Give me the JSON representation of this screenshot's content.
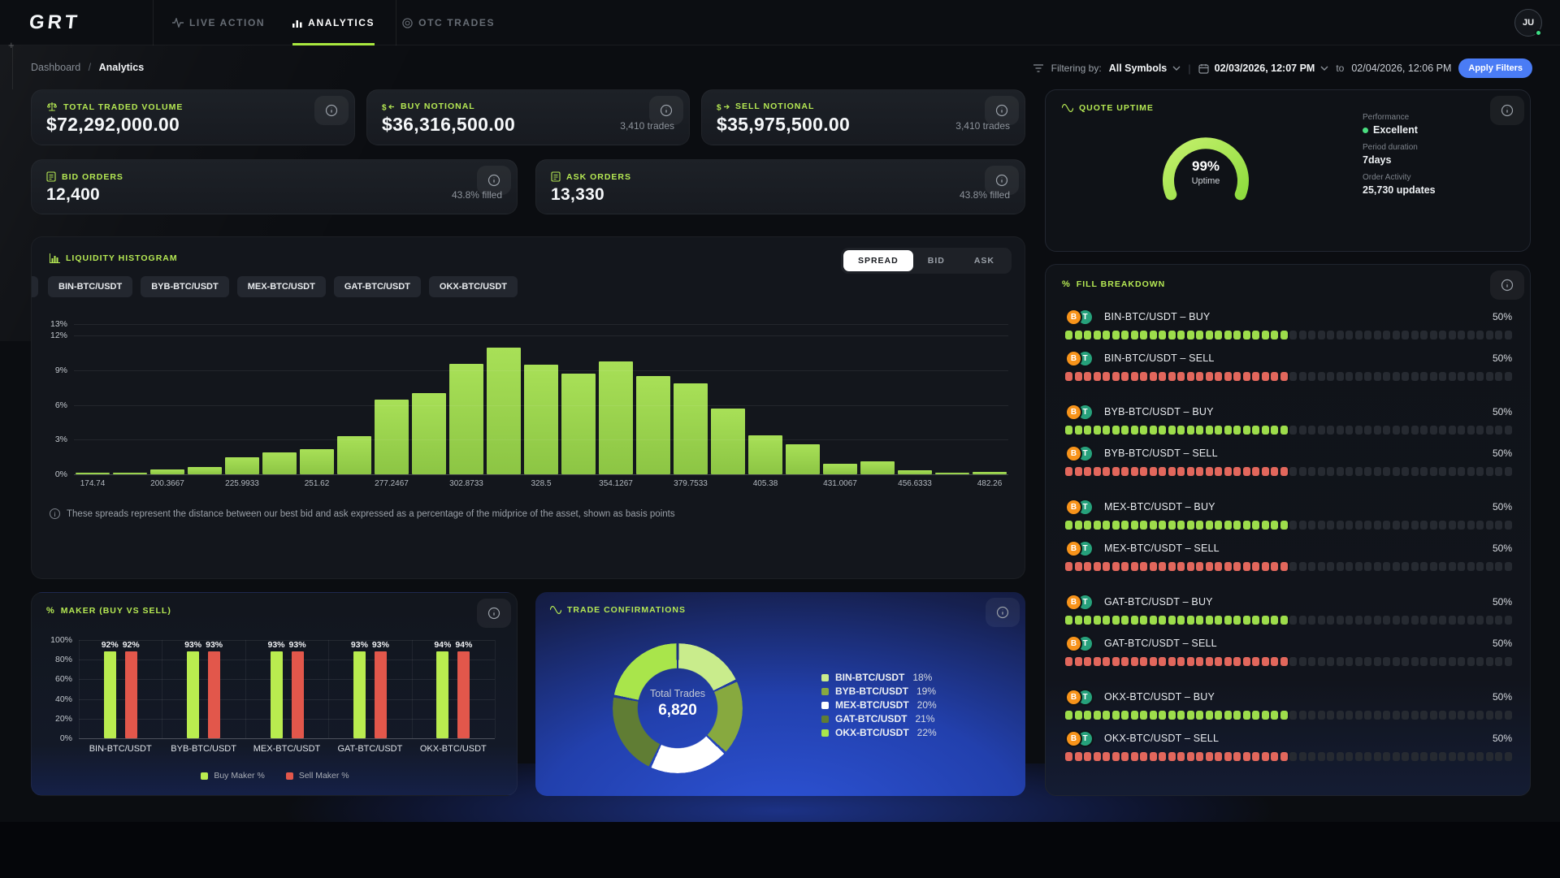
{
  "nav": {
    "logo": "GRT",
    "avatar": "JU",
    "tabs": [
      {
        "label": "LIVE ACTION",
        "icon": "pulse-icon",
        "active": false
      },
      {
        "label": "ANALYTICS",
        "icon": "bar-chart-icon",
        "active": true
      },
      {
        "label": "OTC TRADES",
        "icon": "otc-icon",
        "active": false
      }
    ]
  },
  "breadcrumb": {
    "parent": "Dashboard",
    "separator": "/",
    "current": "Analytics"
  },
  "filters": {
    "label": "Filtering by:",
    "symbol": "All Symbols",
    "separator": "|",
    "date_from": "02/03/2026, 12:07 PM",
    "to_label": "to",
    "date_to": "02/04/2026, 12:06 PM",
    "apply_label": "Apply Filters",
    "accent": "#4a7cf5"
  },
  "stat_cards": [
    {
      "title": "TOTAL TRADED VOLUME",
      "icon": "scale-icon",
      "value": "$72,292,000.00",
      "sub": ""
    },
    {
      "title": "BUY NOTIONAL",
      "icon": "dollar-in-icon",
      "value": "$36,316,500.00",
      "sub": "3,410 trades"
    },
    {
      "title": "SELL NOTIONAL",
      "icon": "dollar-out-icon",
      "value": "$35,975,500.00",
      "sub": "3,410 trades"
    }
  ],
  "order_cards": [
    {
      "title": "BID ORDERS",
      "icon": "clipboard-icon",
      "value": "12,400",
      "sub": "43.8% filled"
    },
    {
      "title": "ASK ORDERS",
      "icon": "clipboard-icon",
      "value": "13,330",
      "sub": "43.8% filled"
    }
  ],
  "quote_uptime": {
    "title": "QUOTE UPTIME",
    "value": "99%",
    "value_label": "Uptime",
    "gauge_colors": [
      "#c3f06b",
      "#8fdc3f"
    ],
    "details": [
      {
        "label": "Performance",
        "value": "Excellent",
        "dot": true
      },
      {
        "label": "Period duration",
        "value": "7days",
        "dot": false
      },
      {
        "label": "Order Activity",
        "value": "25,730 updates",
        "dot": false
      }
    ]
  },
  "liquidity": {
    "title": "LIQUIDITY HISTOGRAM",
    "tabs": [
      {
        "label": "SPREAD",
        "active": true
      },
      {
        "label": "BID",
        "active": false
      },
      {
        "label": "ASK",
        "active": false
      }
    ],
    "symbols": [
      "BIN-BTC/USDT",
      "BYB-BTC/USDT",
      "MEX-BTC/USDT",
      "GAT-BTC/USDT",
      "OKX-BTC/USDT"
    ],
    "footnote": "These spreads represent the distance between our best bid and ask expressed as a percentage of the midprice of the asset, shown as basis points"
  },
  "fill_breakdown": {
    "title": "FILL BREAKDOWN",
    "blocks_total": 48,
    "rows": [
      {
        "label": "BIN-BTC/USDT – BUY",
        "side": "buy",
        "pct": "50%",
        "fill": 50
      },
      {
        "label": "BIN-BTC/USDT – SELL",
        "side": "sell",
        "pct": "50%",
        "fill": 50
      },
      {
        "label": "BYB-BTC/USDT – BUY",
        "side": "buy",
        "pct": "50%",
        "fill": 50
      },
      {
        "label": "BYB-BTC/USDT – SELL",
        "side": "sell",
        "pct": "50%",
        "fill": 50
      },
      {
        "label": "MEX-BTC/USDT – BUY",
        "side": "buy",
        "pct": "50%",
        "fill": 50
      },
      {
        "label": "MEX-BTC/USDT – SELL",
        "side": "sell",
        "pct": "50%",
        "fill": 50
      },
      {
        "label": "GAT-BTC/USDT – BUY",
        "side": "buy",
        "pct": "50%",
        "fill": 50
      },
      {
        "label": "GAT-BTC/USDT – SELL",
        "side": "sell",
        "pct": "50%",
        "fill": 50
      },
      {
        "label": "OKX-BTC/USDT – BUY",
        "side": "buy",
        "pct": "50%",
        "fill": 50
      },
      {
        "label": "OKX-BTC/USDT – SELL",
        "side": "sell",
        "pct": "50%",
        "fill": 50
      }
    ]
  },
  "maker": {
    "title": "MAKER (BUY VS SELL)"
  },
  "trade_confirmations": {
    "title": "TRADE CONFIRMATIONS",
    "center_label": "Total Trades",
    "center_value": "6,820"
  },
  "chart_data": [
    {
      "id": "liquidity_histogram",
      "type": "bar",
      "title": "LIQUIDITY HISTOGRAM (SPREAD)",
      "values": [
        0.15,
        0.15,
        0.4,
        0.65,
        1.45,
        1.9,
        2.2,
        3.3,
        6.5,
        7.0,
        9.6,
        11.0,
        9.5,
        8.7,
        9.8,
        8.5,
        7.9,
        5.7,
        3.4,
        2.6,
        0.9,
        1.1,
        0.35,
        0.15,
        0.2
      ],
      "x_tick_labels": [
        "174.74",
        "200.3667",
        "225.9933",
        "251.62",
        "277.2467",
        "302.8733",
        "328.5",
        "354.1267",
        "379.7533",
        "405.38",
        "431.0067",
        "456.6333",
        "482.26"
      ],
      "x_tick_every": 2,
      "y_ticks": [
        13,
        12,
        9,
        6,
        3,
        0
      ],
      "y_tick_suffix": "%",
      "ylim": [
        0,
        13.5
      ],
      "bar_color": "#9ed44e",
      "grid": true,
      "legend_position": "none"
    },
    {
      "id": "maker_buy_vs_sell",
      "type": "bar",
      "title": "MAKER (BUY VS SELL)",
      "categories": [
        "BIN-BTC/USDT",
        "BYB-BTC/USDT",
        "MEX-BTC/USDT",
        "GAT-BTC/USDT",
        "OKX-BTC/USDT"
      ],
      "series": [
        {
          "name": "Buy Maker %",
          "color": "#b9ec4f",
          "values": [
            92,
            93,
            93,
            93,
            94
          ]
        },
        {
          "name": "Sell Maker %",
          "color": "#e2574b",
          "values": [
            92,
            93,
            93,
            93,
            94
          ]
        }
      ],
      "y_ticks": [
        100,
        80,
        60,
        40,
        20,
        0
      ],
      "y_tick_suffix": "%",
      "ylim": [
        0,
        100
      ],
      "grid": true,
      "legend_position": "bottom"
    },
    {
      "id": "trade_confirmations_donut",
      "type": "pie",
      "title": "TRADE CONFIRMATIONS",
      "labels": [
        "BIN-BTC/USDT",
        "BYB-BTC/USDT",
        "MEX-BTC/USDT",
        "GAT-BTC/USDT",
        "OKX-BTC/USDT"
      ],
      "values": [
        18,
        19,
        20,
        21,
        22
      ],
      "value_suffix": "%",
      "colors": [
        "#c9ec8c",
        "#87a93f",
        "#ffffff",
        "#607d34",
        "#a9e54b"
      ],
      "center_label": "Total Trades",
      "center_value": "6,820",
      "legend_position": "right"
    }
  ]
}
